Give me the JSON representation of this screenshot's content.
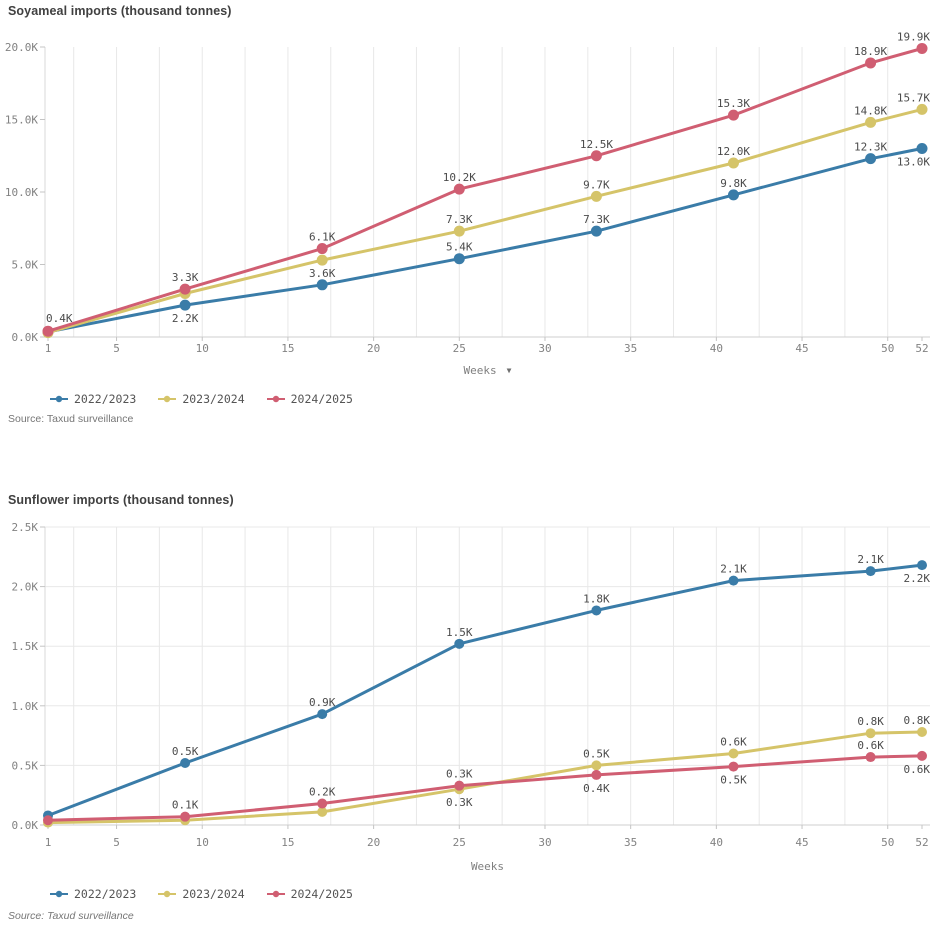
{
  "chart_data": [
    {
      "type": "line",
      "title": "Soyameal imports (thousand tonnes)",
      "xlabel": "Weeks",
      "xlabel_dropdown": true,
      "source": "Source: Taxud surveillance",
      "source_style": "normal",
      "x_ticks": [
        1,
        5,
        10,
        15,
        20,
        25,
        30,
        35,
        40,
        45,
        50,
        52
      ],
      "y_ticks": [
        "0.0K",
        "5.0K",
        "10.0K",
        "15.0K",
        "20.0K"
      ],
      "xlim": [
        1,
        52
      ],
      "ylim": [
        0,
        20
      ],
      "grid": {
        "vertical": true,
        "horizontal": false
      },
      "legend_position": "bottom-left",
      "x": [
        1,
        9,
        17,
        25,
        33,
        41,
        49,
        52
      ],
      "series": [
        {
          "name": "2022/2023",
          "color": "#3a7ca8",
          "values": [
            0.35,
            2.2,
            3.6,
            5.4,
            7.3,
            9.8,
            12.3,
            13.0
          ],
          "labels": [
            null,
            "2.2K",
            "3.6K",
            "5.4K",
            "7.3K",
            "9.8K",
            "12.3K",
            "13.0K"
          ],
          "label_pos": [
            null,
            "b",
            "a",
            "a",
            "a",
            "a",
            "a",
            "be"
          ]
        },
        {
          "name": "2023/2024",
          "color": "#d5c469",
          "values": [
            0.3,
            3.0,
            5.3,
            7.3,
            9.7,
            12.0,
            14.8,
            15.7
          ],
          "labels": [
            null,
            null,
            null,
            "7.3K",
            "9.7K",
            "12.0K",
            "14.8K",
            "15.7K"
          ],
          "label_pos": [
            null,
            null,
            null,
            "a",
            "a",
            "a",
            "a",
            "ae"
          ]
        },
        {
          "name": "2024/2025",
          "color": "#d05e72",
          "values": [
            0.4,
            3.3,
            6.1,
            10.2,
            12.5,
            15.3,
            18.9,
            19.9
          ],
          "labels": [
            "0.4K",
            "3.3K",
            "6.1K",
            "10.2K",
            "12.5K",
            "15.3K",
            "18.9K",
            "19.9K"
          ],
          "label_pos": [
            "as",
            "a",
            "a",
            "a",
            "a",
            "a",
            "a",
            "ae"
          ]
        }
      ]
    },
    {
      "type": "line",
      "title": "Sunflower imports (thousand tonnes)",
      "xlabel": "Weeks",
      "xlabel_dropdown": false,
      "source": "Source: Taxud surveillance",
      "source_style": "italic",
      "x_ticks": [
        1,
        5,
        10,
        15,
        20,
        25,
        30,
        35,
        40,
        45,
        50,
        52
      ],
      "y_ticks": [
        "0.0K",
        "0.5K",
        "1.0K",
        "1.5K",
        "2.0K",
        "2.5K"
      ],
      "xlim": [
        1,
        52
      ],
      "ylim": [
        0,
        2.5
      ],
      "grid": {
        "vertical": true,
        "horizontal": true
      },
      "legend_position": "bottom-left",
      "x": [
        1,
        9,
        17,
        25,
        33,
        41,
        49,
        52
      ],
      "series": [
        {
          "name": "2022/2023",
          "color": "#3a7ca8",
          "values": [
            0.08,
            0.52,
            0.93,
            1.52,
            1.8,
            2.05,
            2.13,
            2.18
          ],
          "labels": [
            null,
            "0.5K",
            "0.9K",
            "1.5K",
            "1.8K",
            "2.1K",
            "2.1K",
            "2.2K"
          ],
          "label_pos": [
            null,
            "a",
            "a",
            "a",
            "a",
            "a",
            "a",
            "be"
          ]
        },
        {
          "name": "2023/2024",
          "color": "#d5c469",
          "values": [
            0.02,
            0.04,
            0.11,
            0.3,
            0.5,
            0.6,
            0.77,
            0.78
          ],
          "labels": [
            null,
            null,
            null,
            "0.3K",
            "0.5K",
            "0.6K",
            "0.8K",
            "0.8K"
          ],
          "label_pos": [
            null,
            null,
            null,
            "b",
            "a",
            "a",
            "a",
            "ae"
          ]
        },
        {
          "name": "2024/2025",
          "color": "#d05e72",
          "values": [
            0.04,
            0.07,
            0.18,
            0.33,
            0.42,
            0.49,
            0.57,
            0.58
          ],
          "labels": [
            null,
            "0.1K",
            "0.2K",
            "0.3K",
            "0.4K",
            "0.5K",
            "0.6K",
            "0.6K"
          ],
          "label_pos": [
            null,
            "a",
            "a",
            "a",
            "b",
            "b",
            "a",
            "be"
          ]
        }
      ]
    }
  ]
}
